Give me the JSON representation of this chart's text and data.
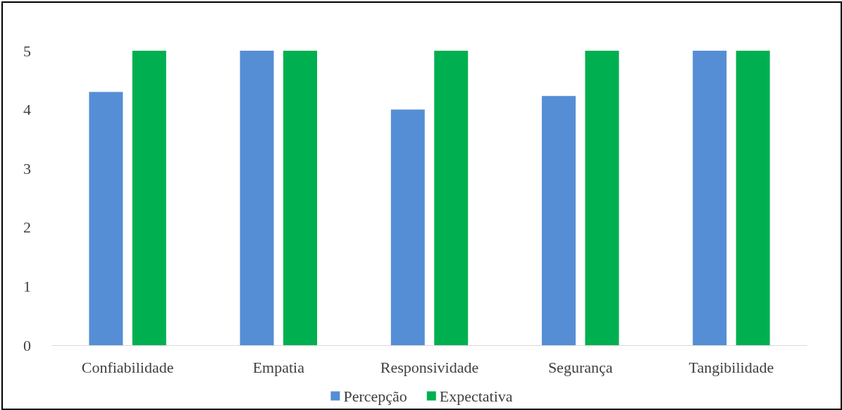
{
  "chart_data": {
    "type": "bar",
    "categories": [
      "Confiabilidade",
      "Empatia",
      "Responsividade",
      "Segurança",
      "Tangibilidade"
    ],
    "series": [
      {
        "name": "Percepção",
        "color": "#558ed5",
        "values": [
          4.3,
          5,
          4,
          4.23,
          5
        ]
      },
      {
        "name": "Expectativa",
        "color": "#00b050",
        "values": [
          5,
          5,
          5,
          5,
          5
        ]
      }
    ],
    "ylim": [
      0,
      5
    ],
    "yticks": [
      0,
      1,
      2,
      3,
      4,
      5
    ],
    "grid": false,
    "legend": "bottom"
  }
}
